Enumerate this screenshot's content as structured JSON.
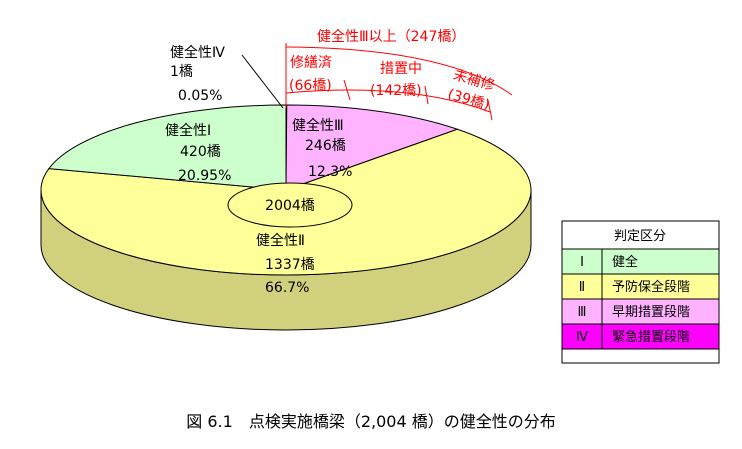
{
  "chart_data": {
    "type": "pie",
    "total_label": "2004橋",
    "slices": [
      {
        "key": "IV",
        "name": "健全性Ⅳ",
        "count_label": "1橋",
        "pct_label": "0.05%",
        "value": 1,
        "color": "#ff00ff"
      },
      {
        "key": "III",
        "name": "健全性Ⅲ",
        "count_label": "246橋",
        "pct_label": "12.3%",
        "value": 246,
        "color": "#ffb3ff"
      },
      {
        "key": "II",
        "name": "健全性Ⅱ",
        "count_label": "1337橋",
        "pct_label": "66.7%",
        "value": 1337,
        "color": "#ffff99"
      },
      {
        "key": "I",
        "name": "健全性Ⅰ",
        "count_label": "420橋",
        "pct_label": "20.95%",
        "value": 420,
        "color": "#ccffcc"
      }
    ],
    "breakdown": {
      "outer_label": "健全性Ⅲ以上（247橋）",
      "items": [
        {
          "name": "修繕済",
          "count_label": "(66橋)"
        },
        {
          "name": "措置中",
          "count_label": "(142橋)"
        },
        {
          "name": "未補修",
          "count_label": "(39橋)"
        }
      ]
    },
    "legend": {
      "title": "判定区分",
      "items": [
        {
          "code": "Ⅰ",
          "label": "健全",
          "color": "#ccffcc"
        },
        {
          "code": "Ⅱ",
          "label": "予防保全段階",
          "color": "#ffff99"
        },
        {
          "code": "Ⅲ",
          "label": "早期措置段階",
          "color": "#ffb3ff"
        },
        {
          "code": "Ⅳ",
          "label": "緊急措置段階",
          "color": "#ff00ff"
        }
      ]
    },
    "caption": "図 6.1　点検実施橋梁（2,004 橋）の健全性の分布"
  }
}
